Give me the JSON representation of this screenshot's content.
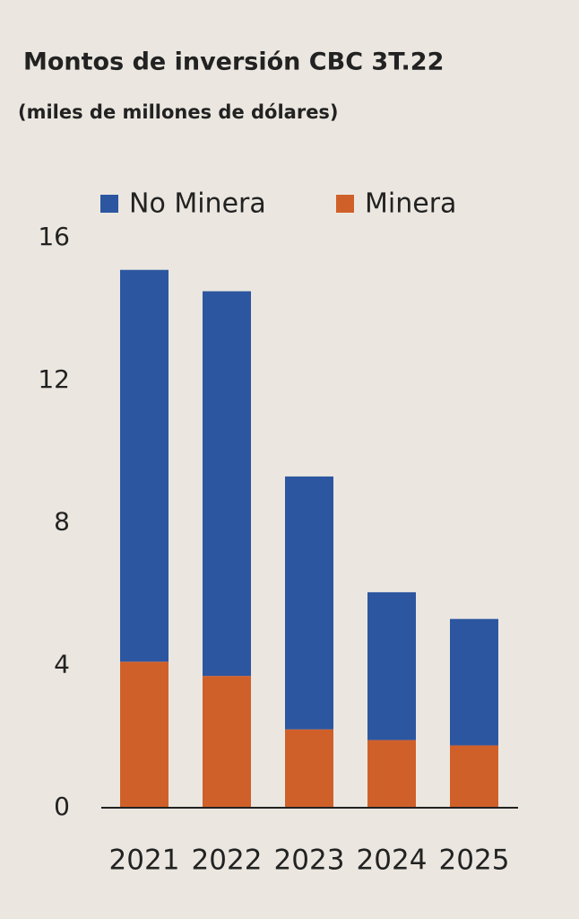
{
  "chart_data": {
    "type": "stacked-bar",
    "title": "Montos de inversión CBC 3T.22",
    "subtitle": "(miles de millones de dólares)",
    "categories": [
      "2021",
      "2022",
      "2023",
      "2024",
      "2025"
    ],
    "series": [
      {
        "name": "Minera",
        "color": "#d0602a",
        "values": [
          4.1,
          3.7,
          2.2,
          1.9,
          1.75
        ]
      },
      {
        "name": "No Minera",
        "color": "#2c56a0",
        "values": [
          11.0,
          10.8,
          7.1,
          4.15,
          3.55
        ]
      }
    ],
    "ylim": [
      0,
      16
    ],
    "yticks": [
      0,
      4,
      8,
      12,
      16
    ],
    "grid": false
  }
}
